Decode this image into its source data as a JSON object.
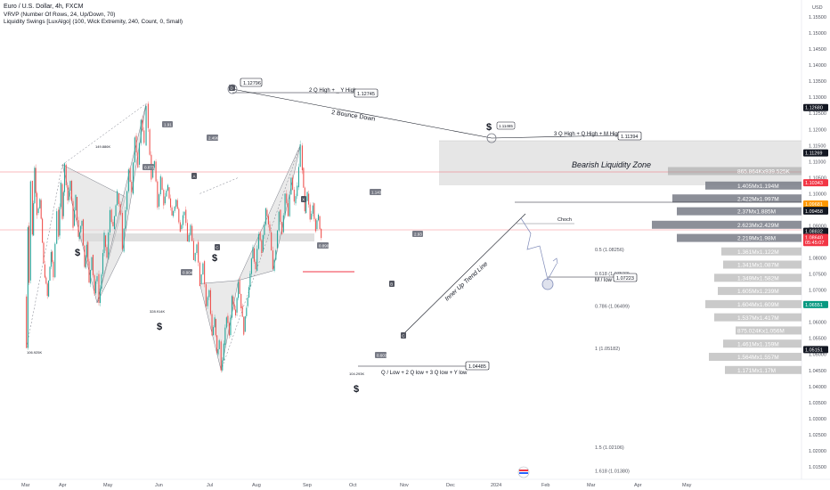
{
  "header": {
    "title": "Euro / U.S. Dollar, 4h, FXCM",
    "indicator1": "VRVP (Number Of Rows, 24, Up/Down, 70)",
    "indicator2": "Liquidity Swings [LuxAlgo] (100, Wick Extremity, 240, Count, 0, Small)"
  },
  "colors": {
    "candle_up": "#26a69a",
    "candle_down": "#ef5350",
    "ink": "#131722",
    "zone": "#e6e6e6",
    "pattern_fill": "#d9d9d9",
    "volume_bar": "#9e9e9e",
    "volume_bar_dark": "#787b86",
    "red_tag": "#f23645",
    "orange_tag": "#ff9800",
    "green_tag": "#089981",
    "projection": "#7e8ab8"
  },
  "chart_data": {
    "type": "candlestick",
    "currency": "USD",
    "x_labels": [
      "Mar",
      "Apr",
      "May",
      "Jun",
      "Jul",
      "Aug",
      "Sep",
      "Oct",
      "Nov",
      "Dec",
      "2024",
      "Feb",
      "Mar",
      "Apr",
      "May"
    ],
    "y_ticks": [
      "1.15500",
      "1.15000",
      "1.14500",
      "1.14000",
      "1.13500",
      "1.13000",
      "1.12500",
      "1.12000",
      "1.11500",
      "1.11000",
      "1.10500",
      "1.10000",
      "1.09500",
      "1.09000",
      "1.08500",
      "1.08000",
      "1.07500",
      "1.07000",
      "1.06500",
      "1.06000",
      "1.05500",
      "1.05000",
      "1.04500",
      "1.04000",
      "1.03500",
      "1.03000",
      "1.02500",
      "1.02000",
      "1.01500"
    ],
    "ylim": [
      1.0125,
      1.1575
    ],
    "price_path": [
      [
        0.0,
        1.068
      ],
      [
        0.04,
        1.052
      ],
      [
        0.08,
        1.09
      ],
      [
        0.11,
        1.073
      ],
      [
        0.15,
        1.104
      ],
      [
        0.2,
        1.087
      ],
      [
        0.26,
        1.108
      ],
      [
        0.32,
        1.094
      ],
      [
        0.4,
        1.098
      ],
      [
        0.5,
        1.078
      ],
      [
        0.6,
        1.068
      ],
      [
        0.7,
        1.082
      ],
      [
        0.76,
        1.074
      ],
      [
        0.85,
        1.095
      ],
      [
        0.9,
        1.087
      ],
      [
        0.96,
        1.103
      ],
      [
        1.0,
        1.093
      ],
      [
        1.05,
        1.109
      ],
      [
        1.12,
        1.098
      ],
      [
        1.18,
        1.104
      ],
      [
        1.24,
        1.09
      ],
      [
        1.3,
        1.099
      ],
      [
        1.36,
        1.086
      ],
      [
        1.44,
        1.092
      ],
      [
        1.5,
        1.077
      ],
      [
        1.55,
        1.085
      ],
      [
        1.6,
        1.072
      ],
      [
        1.66,
        1.081
      ],
      [
        1.72,
        1.069
      ],
      [
        1.78,
        1.075
      ],
      [
        1.82,
        1.066
      ],
      [
        1.88,
        1.075
      ],
      [
        1.94,
        1.087
      ],
      [
        2.0,
        1.08
      ],
      [
        2.06,
        1.095
      ],
      [
        2.12,
        1.089
      ],
      [
        2.2,
        1.1
      ],
      [
        2.26,
        1.094
      ],
      [
        2.3,
        1.082
      ],
      [
        2.36,
        1.095
      ],
      [
        2.42,
        1.108
      ],
      [
        2.48,
        1.1
      ],
      [
        2.54,
        1.118
      ],
      [
        2.6,
        1.109
      ],
      [
        2.66,
        1.123
      ],
      [
        2.72,
        1.115
      ],
      [
        2.76,
        1.128
      ],
      [
        2.8,
        1.12
      ],
      [
        2.86,
        1.105
      ],
      [
        2.92,
        1.11
      ],
      [
        2.98,
        1.096
      ],
      [
        3.04,
        1.105
      ],
      [
        3.1,
        1.097
      ],
      [
        3.18,
        1.102
      ],
      [
        3.26,
        1.093
      ],
      [
        3.34,
        1.098
      ],
      [
        3.42,
        1.089
      ],
      [
        3.5,
        1.095
      ],
      [
        3.56,
        1.085
      ],
      [
        3.62,
        1.09
      ],
      [
        3.68,
        1.079
      ],
      [
        3.74,
        1.085
      ],
      [
        3.8,
        1.072
      ],
      [
        3.86,
        1.079
      ],
      [
        3.92,
        1.065
      ],
      [
        3.98,
        1.07
      ],
      [
        4.04,
        1.056
      ],
      [
        4.1,
        1.061
      ],
      [
        4.15,
        1.05
      ],
      [
        4.2,
        1.054
      ],
      [
        4.24,
        1.045
      ],
      [
        4.3,
        1.053
      ],
      [
        4.36,
        1.062
      ],
      [
        4.42,
        1.056
      ],
      [
        4.48,
        1.068
      ],
      [
        4.56,
        1.063
      ],
      [
        4.62,
        1.073
      ],
      [
        4.68,
        1.065
      ],
      [
        4.74,
        1.057
      ],
      [
        4.8,
        1.065
      ],
      [
        4.88,
        1.075
      ],
      [
        4.94,
        1.083
      ],
      [
        5.0,
        1.076
      ],
      [
        5.06,
        1.088
      ],
      [
        5.12,
        1.082
      ],
      [
        5.2,
        1.095
      ],
      [
        5.28,
        1.088
      ],
      [
        5.34,
        1.076
      ],
      [
        5.4,
        1.083
      ],
      [
        5.46,
        1.095
      ],
      [
        5.52,
        1.088
      ],
      [
        5.58,
        1.1
      ],
      [
        5.64,
        1.093
      ],
      [
        5.7,
        1.105
      ],
      [
        5.76,
        1.097
      ],
      [
        5.82,
        1.102
      ],
      [
        5.88,
        1.115
      ],
      [
        5.92,
        1.108
      ],
      [
        5.97,
        1.094
      ],
      [
        6.02,
        1.1
      ],
      [
        6.08,
        1.092
      ],
      [
        6.14,
        1.097
      ],
      [
        6.2,
        1.089
      ],
      [
        6.26,
        1.093
      ],
      [
        6.32,
        1.0864
      ]
    ],
    "volume_profile": [
      {
        "price": 1.107,
        "label": "865.864Kx939.525K",
        "w": 150
      },
      {
        "price": 1.1025,
        "label": "1.405Mx1.194M",
        "w": 108
      },
      {
        "price": 1.0985,
        "label": "2.422Mx1.997M",
        "w": 145
      },
      {
        "price": 1.0945,
        "label": "2.37Mx1.885M",
        "w": 140
      },
      {
        "price": 1.0903,
        "label": "2.623Mx2.429M",
        "w": 168
      },
      {
        "price": 1.0862,
        "label": "2.219Mx1.98M",
        "w": 140
      },
      {
        "price": 1.082,
        "label": "1.361Mx1.122M",
        "w": 90
      },
      {
        "price": 1.0779,
        "label": "1.341Mx1.087M",
        "w": 88
      },
      {
        "price": 1.0738,
        "label": "1.349Mx1.582M",
        "w": 98
      },
      {
        "price": 1.0697,
        "label": "1.605Mx1.239M",
        "w": 94
      },
      {
        "price": 1.0656,
        "label": "1.604Mx1.609M",
        "w": 108
      },
      {
        "price": 1.0615,
        "label": "1.537Mx1.417M",
        "w": 98
      },
      {
        "price": 1.0574,
        "label": "875.024Kx1.056M",
        "w": 74
      },
      {
        "price": 1.0533,
        "label": "1.461Mx1.159M",
        "w": 88
      },
      {
        "price": 1.0492,
        "label": "1.564Mx1.557M",
        "w": 104
      },
      {
        "price": 1.0451,
        "label": "1.171Mx1.17M",
        "w": 86
      }
    ],
    "price_tags": [
      {
        "label": "1.12680",
        "price": 1.1268,
        "color": "#131722"
      },
      {
        "label": "1.11269",
        "price": 1.1127,
        "color": "#131722"
      },
      {
        "label": "1.10343",
        "price": 1.1034,
        "color": "#f23645"
      },
      {
        "label": "1.09681",
        "price": 1.0968,
        "color": "#ff9800"
      },
      {
        "label": "1.09482",
        "price": 1.0948,
        "color": "#131722"
      },
      {
        "label": "1.09458",
        "price": 1.0946,
        "color": "#131722"
      },
      {
        "label": "1.08832",
        "price": 1.0883,
        "color": "#131722"
      },
      {
        "label": "1.08640",
        "price": 1.0864,
        "color": "#f23645"
      },
      {
        "label": "05:45:07",
        "price": 1.0848,
        "color": "#f23645"
      },
      {
        "label": "1.06551",
        "price": 1.0655,
        "color": "#089981"
      },
      {
        "label": "1.05151",
        "price": 1.0515,
        "color": "#131722"
      }
    ],
    "fib_levels": [
      {
        "label": "0.5 (1.08256)",
        "price": 1.0826
      },
      {
        "label": "0.618 (1.07522)",
        "price": 1.0752
      },
      {
        "label": "0.786 (1.06499)",
        "price": 1.065
      },
      {
        "label": "1 (1.05182)",
        "price": 1.0518
      },
      {
        "label": "1.5 (1.02106)",
        "price": 1.0211
      },
      {
        "label": "1.618 (1.01380)",
        "price": 1.0138
      }
    ]
  },
  "annotations": {
    "q2_high": "2 Q High + _ Y High",
    "q2_high_price": "1.12745",
    "peak_price": "1.12796",
    "bounce": "2 Bounce Down",
    "q3_high": "3 Q High + Q High + M High",
    "q3_high_price": "1.11394",
    "q3_peak": "1.11465",
    "bearish_zone": "Bearish Liquidity Zone",
    "choch": "Choch",
    "m_low": "M / low",
    "m_low_price": "1.07223",
    "q_low": "Q / Low + 2 Q low + 3 Q low + Y low",
    "q_low_price": "1.04485",
    "trend_line": "Inner Up Trend Line",
    "dollar": "$",
    "vol_left_1": "106.925K",
    "vol_left_2": "149.886K",
    "vol_left_3": "328.914K",
    "vol_left_4": "104.293K",
    "swing_1": "1.91",
    "swing_2": "0.873",
    "swing_3": "2.496",
    "swing_4": "0.904",
    "swing_5": "1.143",
    "swing_6": "0.890",
    "swing_7": "2.93",
    "swing_8": "0.603",
    "pt_a": "A",
    "pt_b": "B",
    "pt_c": "C",
    "pt_d": "D",
    "pt_x": "X"
  }
}
